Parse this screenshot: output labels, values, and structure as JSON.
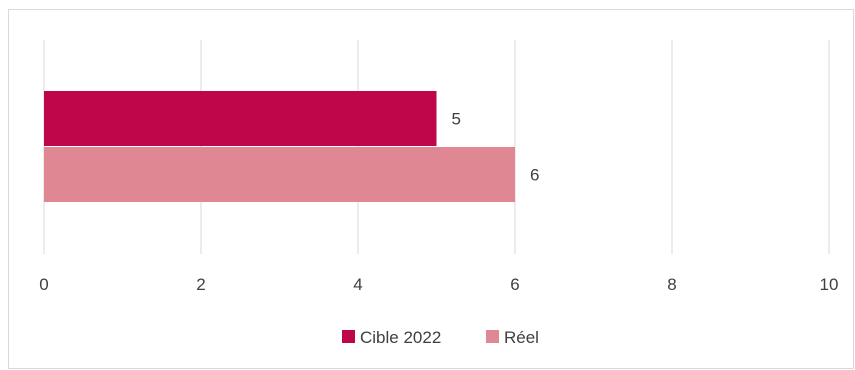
{
  "chart_data": {
    "type": "bar",
    "orientation": "horizontal",
    "categories": [
      ""
    ],
    "series": [
      {
        "name": "Cible 2022",
        "values": [
          5
        ],
        "color": "#c0064a"
      },
      {
        "name": "Réel",
        "values": [
          6
        ],
        "color": "#e08794"
      }
    ],
    "xlim": [
      0,
      10
    ],
    "xticks": [
      "0",
      "2",
      "4",
      "6",
      "8",
      "10"
    ],
    "grid": true,
    "legend_position": "bottom",
    "data_labels": [
      "5",
      "6"
    ]
  }
}
